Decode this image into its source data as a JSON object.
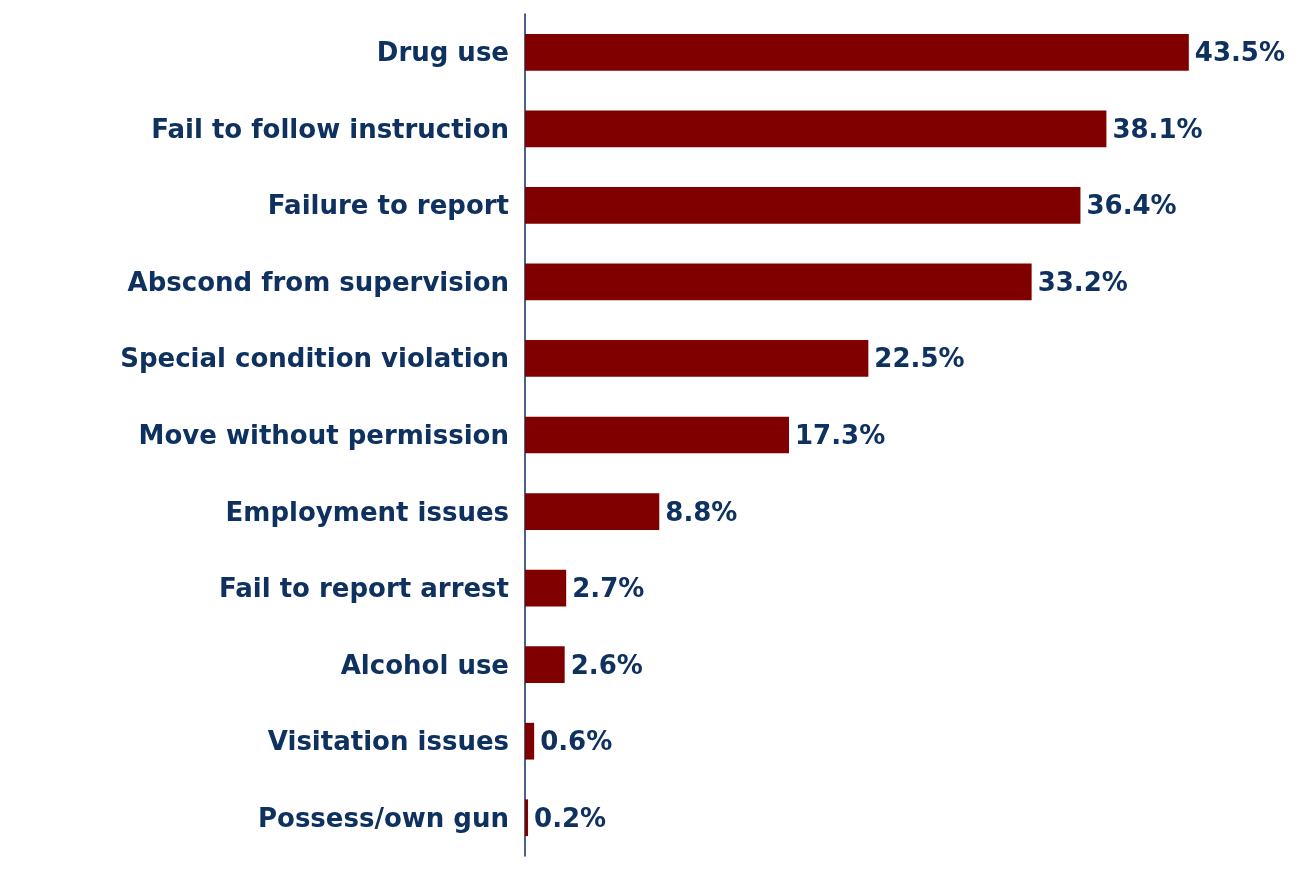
{
  "chart_data": {
    "type": "bar",
    "orientation": "horizontal",
    "categories": [
      "Drug use",
      "Fail to follow instruction",
      "Failure to report",
      "Abscond from supervision",
      "Special condition violation",
      "Move without permission",
      "Employment issues",
      "Fail to report arrest",
      "Alcohol use",
      "Visitation issues",
      "Possess/own gun"
    ],
    "values": [
      43.5,
      38.1,
      36.4,
      33.2,
      22.5,
      17.3,
      8.8,
      2.7,
      2.6,
      0.6,
      0.2
    ],
    "value_labels": [
      "43.5%",
      "38.1%",
      "36.4%",
      "33.2%",
      "22.5%",
      "17.3%",
      "8.8%",
      "2.7%",
      "2.6%",
      "0.6%",
      "0.2%"
    ],
    "color": "#800000"
  }
}
